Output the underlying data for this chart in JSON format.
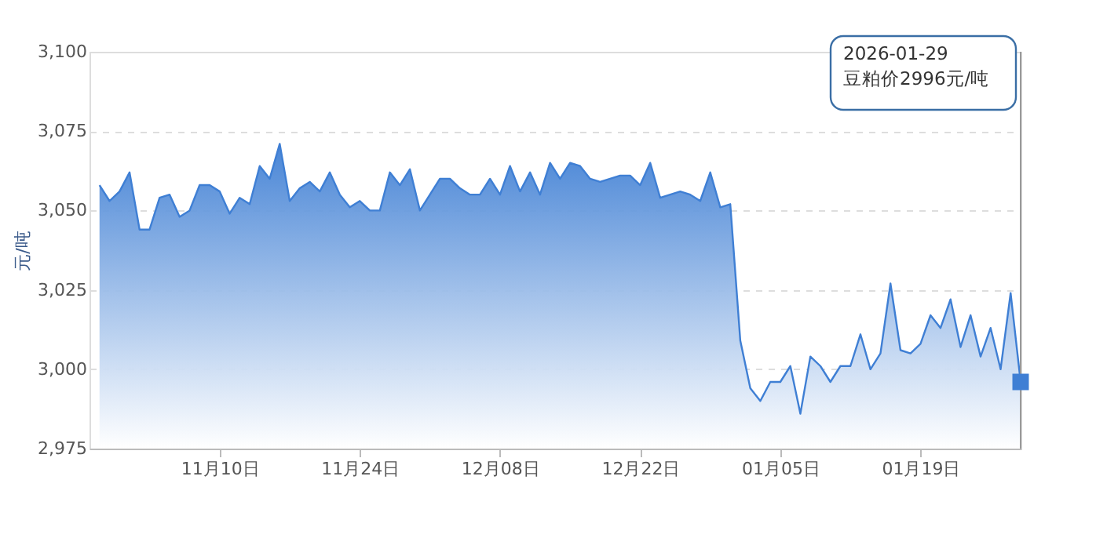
{
  "chart_data": {
    "type": "area",
    "ylabel": "元/吨",
    "x": [
      "2025-10-29",
      "2025-10-30",
      "2025-10-31",
      "2025-11-01",
      "2025-11-02",
      "2025-11-03",
      "2025-11-04",
      "2025-11-05",
      "2025-11-06",
      "2025-11-07",
      "2025-11-08",
      "2025-11-09",
      "2025-11-10",
      "2025-11-11",
      "2025-11-12",
      "2025-11-13",
      "2025-11-14",
      "2025-11-15",
      "2025-11-16",
      "2025-11-17",
      "2025-11-18",
      "2025-11-19",
      "2025-11-20",
      "2025-11-21",
      "2025-11-22",
      "2025-11-23",
      "2025-11-24",
      "2025-11-25",
      "2025-11-26",
      "2025-11-27",
      "2025-11-28",
      "2025-11-29",
      "2025-11-30",
      "2025-12-01",
      "2025-12-02",
      "2025-12-03",
      "2025-12-04",
      "2025-12-05",
      "2025-12-06",
      "2025-12-07",
      "2025-12-08",
      "2025-12-09",
      "2025-12-10",
      "2025-12-11",
      "2025-12-12",
      "2025-12-13",
      "2025-12-14",
      "2025-12-15",
      "2025-12-16",
      "2025-12-17",
      "2025-12-18",
      "2025-12-19",
      "2025-12-20",
      "2025-12-21",
      "2025-12-22",
      "2025-12-23",
      "2025-12-24",
      "2025-12-25",
      "2025-12-26",
      "2025-12-27",
      "2025-12-28",
      "2025-12-29",
      "2025-12-30",
      "2025-12-31",
      "2026-01-01",
      "2026-01-02",
      "2026-01-03",
      "2026-01-04",
      "2026-01-05",
      "2026-01-06",
      "2026-01-07",
      "2026-01-08",
      "2026-01-09",
      "2026-01-10",
      "2026-01-11",
      "2026-01-12",
      "2026-01-13",
      "2026-01-14",
      "2026-01-15",
      "2026-01-16",
      "2026-01-17",
      "2026-01-18",
      "2026-01-19",
      "2026-01-20",
      "2026-01-21",
      "2026-01-22",
      "2026-01-23",
      "2026-01-24",
      "2026-01-25",
      "2026-01-26",
      "2026-01-27",
      "2026-01-28",
      "2026-01-29"
    ],
    "series": [
      {
        "color": "#3f7fd4",
        "values": [
          3058,
          3053,
          3056,
          3062,
          3044,
          3044,
          3054,
          3055,
          3048,
          3050,
          3058,
          3058,
          3056,
          3049,
          3054,
          3052,
          3064,
          3060,
          3071,
          3053,
          3057,
          3059,
          3056,
          3062,
          3055,
          3051,
          3053,
          3050,
          3050,
          3062,
          3058,
          3063,
          3050,
          3055,
          3060,
          3060,
          3057,
          3055,
          3055,
          3060,
          3055,
          3064,
          3056,
          3062,
          3055,
          3065,
          3060,
          3065,
          3064,
          3060,
          3059,
          3060,
          3061,
          3061,
          3058,
          3065,
          3054,
          3055,
          3056,
          3055,
          3053,
          3062,
          3051,
          3052,
          3009,
          2994,
          2990,
          2996,
          2996,
          3001,
          2986,
          3004,
          3001,
          2996,
          3001,
          3001,
          3011,
          3000,
          3005,
          3027,
          3006,
          3005,
          3008,
          3017,
          3013,
          3022,
          3007,
          3017,
          3004,
          3013,
          3000,
          3024,
          2996
        ]
      }
    ],
    "xlim": [
      "2025-10-28",
      "2026-01-29"
    ],
    "xticks": [
      {
        "value": "2025-11-10",
        "label": "11月10日"
      },
      {
        "value": "2025-11-24",
        "label": "11月24日"
      },
      {
        "value": "2025-12-08",
        "label": "12月08日"
      },
      {
        "value": "2025-12-22",
        "label": "12月22日"
      },
      {
        "value": "2026-01-05",
        "label": "01月05日"
      },
      {
        "value": "2026-01-19",
        "label": "01月19日"
      }
    ],
    "ylim": [
      2975,
      3100
    ],
    "yticks": [
      {
        "value": 2975,
        "label": "2,975"
      },
      {
        "value": 3000,
        "label": "3,000"
      },
      {
        "value": 3025,
        "label": "3,025"
      },
      {
        "value": 3050,
        "label": "3,050"
      },
      {
        "value": 3075,
        "label": "3,075"
      },
      {
        "value": 3100,
        "label": "3,100"
      }
    ],
    "grid": "y",
    "marker": "none",
    "annotations": [
      "2026-01-29\n豆粕价2996元/吨"
    ]
  }
}
